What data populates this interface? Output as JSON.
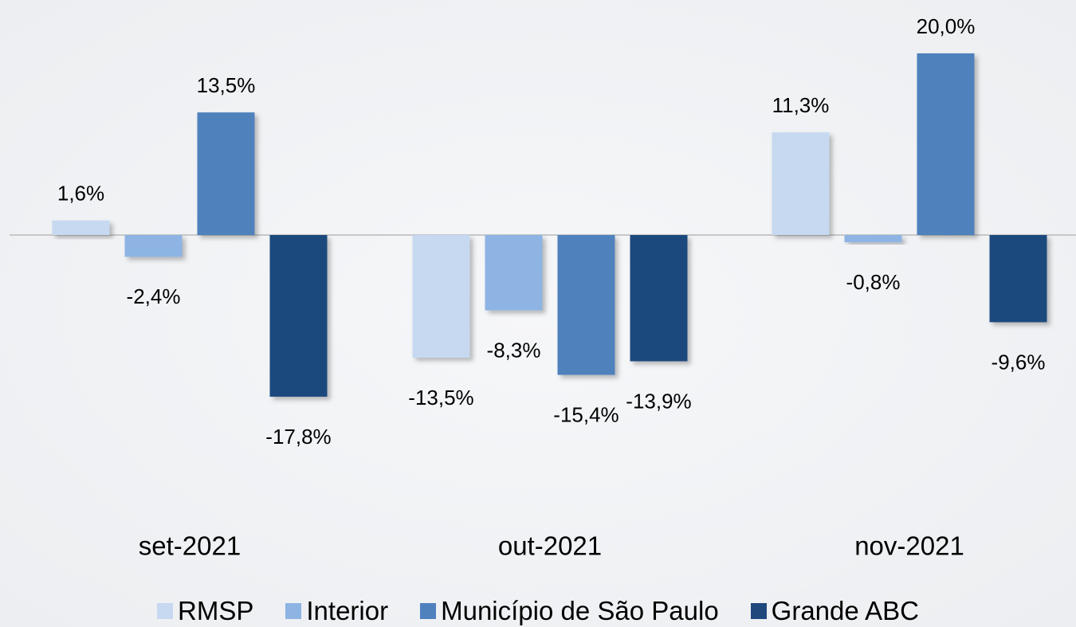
{
  "chart_data": {
    "type": "bar",
    "categories": [
      "set-2021",
      "out-2021",
      "nov-2021"
    ],
    "series": [
      {
        "name": "RMSP",
        "color": "#c6d9f1",
        "values": [
          1.6,
          -13.5,
          11.3
        ],
        "value_labels": [
          "1,6%",
          "-13,5%",
          "11,3%"
        ]
      },
      {
        "name": "Interior",
        "color": "#8eb4e3",
        "values": [
          -2.4,
          -8.3,
          -0.8
        ],
        "value_labels": [
          "-2,4%",
          "-8,3%",
          "-0,8%"
        ]
      },
      {
        "name": "Município de São Paulo",
        "color": "#4f81bd",
        "values": [
          13.5,
          -15.4,
          20.0
        ],
        "value_labels": [
          "13,5%",
          "-15,4%",
          "20,0%"
        ]
      },
      {
        "name": "Grande ABC",
        "color": "#1f497d",
        "values": [
          -17.8,
          -13.9,
          -9.6
        ],
        "value_labels": [
          "-17,8%",
          "-13,9%",
          "-9,6%"
        ]
      }
    ],
    "legend": "bottom"
  }
}
